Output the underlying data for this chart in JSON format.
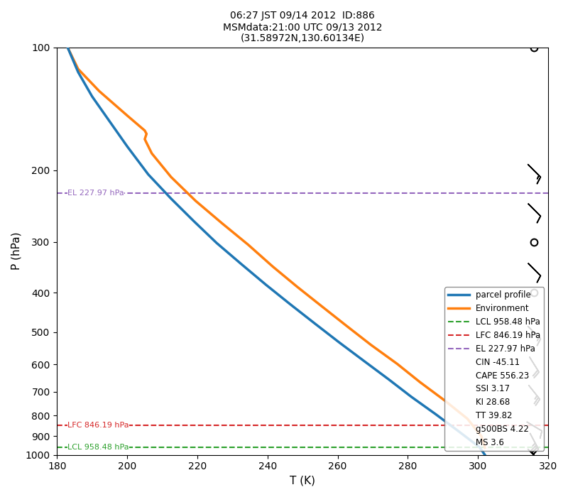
{
  "title": "06:27 JST 09/14 2012  ID:886\nMSMdata:21:00 UTC 09/13 2012\n(31.58972N,130.60134E)",
  "xlabel": "T (K)",
  "ylabel": "P (hPa)",
  "xlim": [
    180,
    320
  ],
  "ylim": [
    1000,
    100
  ],
  "xticks": [
    180,
    200,
    220,
    240,
    260,
    280,
    300,
    320
  ],
  "yticks": [
    100,
    200,
    300,
    400,
    500,
    600,
    700,
    800,
    900,
    1000
  ],
  "parcel_T": [
    183.0,
    186.0,
    190.0,
    195.0,
    200.0,
    206.0,
    212.5,
    219.0,
    225.5,
    232.5,
    239.5,
    246.5,
    253.5,
    260.5,
    267.5,
    274.5,
    281.0,
    288.0,
    294.5,
    300.5,
    302.0
  ],
  "parcel_P": [
    100,
    115,
    132,
    152,
    175,
    205,
    235,
    267,
    302,
    340,
    382,
    427,
    476,
    530,
    588,
    652,
    720,
    795,
    875,
    958,
    1000
  ],
  "env_T": [
    183.0,
    186.0,
    192.0,
    200.0,
    205.0,
    205.5,
    205.0,
    207.0,
    212.5,
    219.5,
    227.0,
    234.5,
    241.5,
    248.5,
    255.5,
    262.5,
    269.5,
    277.0,
    283.5,
    290.5,
    297.0,
    301.0,
    302.0
  ],
  "env_P": [
    100,
    113,
    128,
    147,
    160,
    163,
    168,
    182,
    208,
    238,
    270,
    305,
    345,
    387,
    432,
    482,
    537,
    598,
    663,
    735,
    815,
    900,
    960
  ],
  "parcel_color": "#1f77b4",
  "env_color": "#ff7f0e",
  "LCL_P": 958.48,
  "LFC_P": 846.19,
  "EL_P": 227.97,
  "LCL_color": "#2ca02c",
  "LFC_color": "#d62728",
  "EL_color": "#9467bd",
  "legend_entries": [
    {
      "label": "parcel profile",
      "color": "#1f77b4",
      "lw": 2.5,
      "ls": "-"
    },
    {
      "label": "Environment",
      "color": "#ff7f0e",
      "lw": 2.5,
      "ls": "-"
    },
    {
      "label": "LCL 958.48 hPa",
      "color": "#2ca02c",
      "lw": 1.5,
      "ls": "--"
    },
    {
      "label": "LFC 846.19 hPa",
      "color": "#d62728",
      "lw": 1.5,
      "ls": "--"
    },
    {
      "label": "EL 227.97 hPa",
      "color": "#9467bd",
      "lw": 1.5,
      "ls": "--"
    },
    {
      "label": "CIN -45.11",
      "color": "none",
      "lw": 0,
      "ls": ""
    },
    {
      "label": "CAPE 556.23",
      "color": "none",
      "lw": 0,
      "ls": ""
    },
    {
      "label": "SSI 3.17",
      "color": "none",
      "lw": 0,
      "ls": ""
    },
    {
      "label": "KI 28.68",
      "color": "none",
      "lw": 0,
      "ls": ""
    },
    {
      "label": "TT 39.82",
      "color": "none",
      "lw": 0,
      "ls": ""
    },
    {
      "label": "g500BS 4.22",
      "color": "none",
      "lw": 0,
      "ls": ""
    },
    {
      "label": "MS 3.6",
      "color": "none",
      "lw": 0,
      "ls": ""
    }
  ],
  "wind_barbs": [
    {
      "P": 100,
      "u": 0,
      "v": 0,
      "calm": true
    },
    {
      "P": 200,
      "u": -5,
      "v": 5,
      "calm": false
    },
    {
      "P": 250,
      "u": -3,
      "v": 3,
      "calm": false
    },
    {
      "P": 300,
      "u": 0,
      "v": 0,
      "calm": true
    },
    {
      "P": 350,
      "u": -3,
      "v": 3,
      "calm": false
    },
    {
      "P": 400,
      "u": 0,
      "v": 0,
      "calm": true
    },
    {
      "P": 500,
      "u": -5,
      "v": 5,
      "calm": false
    },
    {
      "P": 600,
      "u": -5,
      "v": 8,
      "calm": false
    },
    {
      "P": 700,
      "u": -8,
      "v": 10,
      "calm": false
    },
    {
      "P": 850,
      "u": -5,
      "v": 3,
      "calm": false
    },
    {
      "P": 925,
      "u": -8,
      "v": 15,
      "calm": false
    },
    {
      "P": 1000,
      "u": -5,
      "v": 5,
      "calm": false
    }
  ],
  "barb_x": 316
}
